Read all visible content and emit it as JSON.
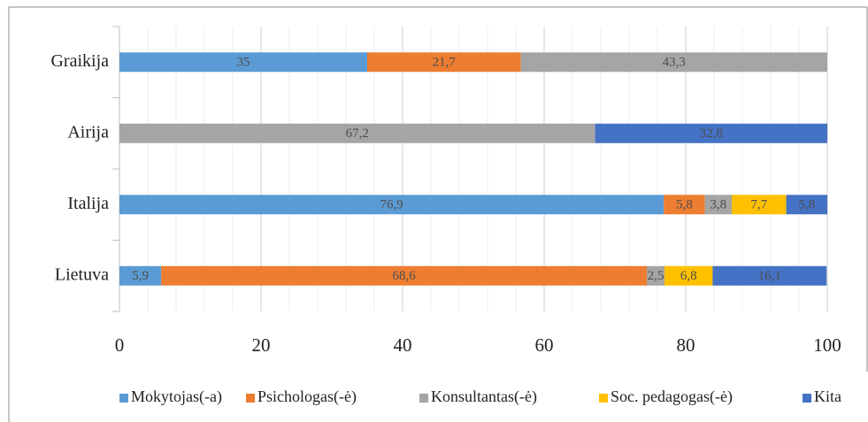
{
  "chart_data": {
    "type": "stacked_barh",
    "categories": [
      "Graikija",
      "Airija",
      "Italija",
      "Lietuva"
    ],
    "series": [
      {
        "name": "Mokytojas(-a)",
        "color": "#5b9bd5",
        "values": [
          35,
          null,
          76.9,
          5.9
        ],
        "value_labels": [
          "35",
          null,
          "76,9",
          "5,9"
        ]
      },
      {
        "name": "Psichologas(-ė)",
        "color": "#ed7d31",
        "values": [
          21.7,
          null,
          5.8,
          68.6
        ],
        "value_labels": [
          "21,7",
          null,
          "5,8",
          "68,6"
        ]
      },
      {
        "name": "Konsultantas(-ė)",
        "color": "#a5a5a5",
        "values": [
          43.3,
          67.2,
          3.8,
          2.5
        ],
        "value_labels": [
          "43,3",
          "67,2",
          "3,8",
          "2,5"
        ]
      },
      {
        "name": "Soc. pedagogas(-ė)",
        "color": "#ffc000",
        "values": [
          null,
          null,
          7.7,
          6.8
        ],
        "value_labels": [
          null,
          null,
          "7,7",
          "6,8"
        ]
      },
      {
        "name": "Kita",
        "color": "#4472c4",
        "values": [
          null,
          32.8,
          5.8,
          16.1
        ],
        "value_labels": [
          null,
          "32,8",
          "5,8",
          "16,1"
        ]
      }
    ],
    "xlim": [
      0,
      100
    ],
    "xticks": [
      0,
      20,
      40,
      60,
      80,
      100
    ],
    "xminor_ticks": [
      4,
      8,
      12,
      16,
      24,
      28,
      32,
      36,
      44,
      48,
      52,
      56,
      64,
      68,
      72,
      76,
      84,
      88,
      92,
      96
    ],
    "grid": true,
    "legend": "bottom"
  }
}
